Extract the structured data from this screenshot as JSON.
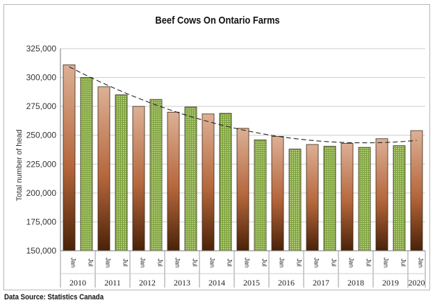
{
  "chart_data": {
    "type": "bar",
    "title": "Beef Cows On Ontario Farms",
    "ylabel": "Total number of head",
    "xlabel": "",
    "ylim": [
      150000,
      325000
    ],
    "yticks": [
      "150,000",
      "175,000",
      "200,000",
      "225,000",
      "250,000",
      "275,000",
      "300,000",
      "325,000"
    ],
    "categories": [
      "Jan",
      "Jul",
      "Jan",
      "Jul",
      "Jan",
      "Jul",
      "Jan",
      "Jul",
      "Jan",
      "Jul",
      "Jan",
      "Jul",
      "Jan",
      "Jul",
      "Jan",
      "Jul",
      "Jan",
      "Jul",
      "Jan",
      "Jul",
      "Jan"
    ],
    "years": [
      "2010",
      "2011",
      "2012",
      "2013",
      "2014",
      "2015",
      "2016",
      "2017",
      "2018",
      "2019",
      "2020"
    ],
    "values": [
      311000,
      300000,
      292000,
      285000,
      275000,
      281000,
      270000,
      274500,
      268500,
      269000,
      256000,
      246000,
      249000,
      238000,
      242000,
      240500,
      243000,
      239500,
      247000,
      241000,
      254000
    ],
    "trendline": "polynomial",
    "grid": true,
    "legend": "none",
    "colors": {
      "jan_top": "#ddb096",
      "jan_bottom": "#4a2208",
      "jul_fill": "#7ea23e",
      "jul_dot": "#cfe39a",
      "trend": "#222222",
      "grid": "#cccccc"
    }
  },
  "source_text": "Data Source: Statistics Canada"
}
